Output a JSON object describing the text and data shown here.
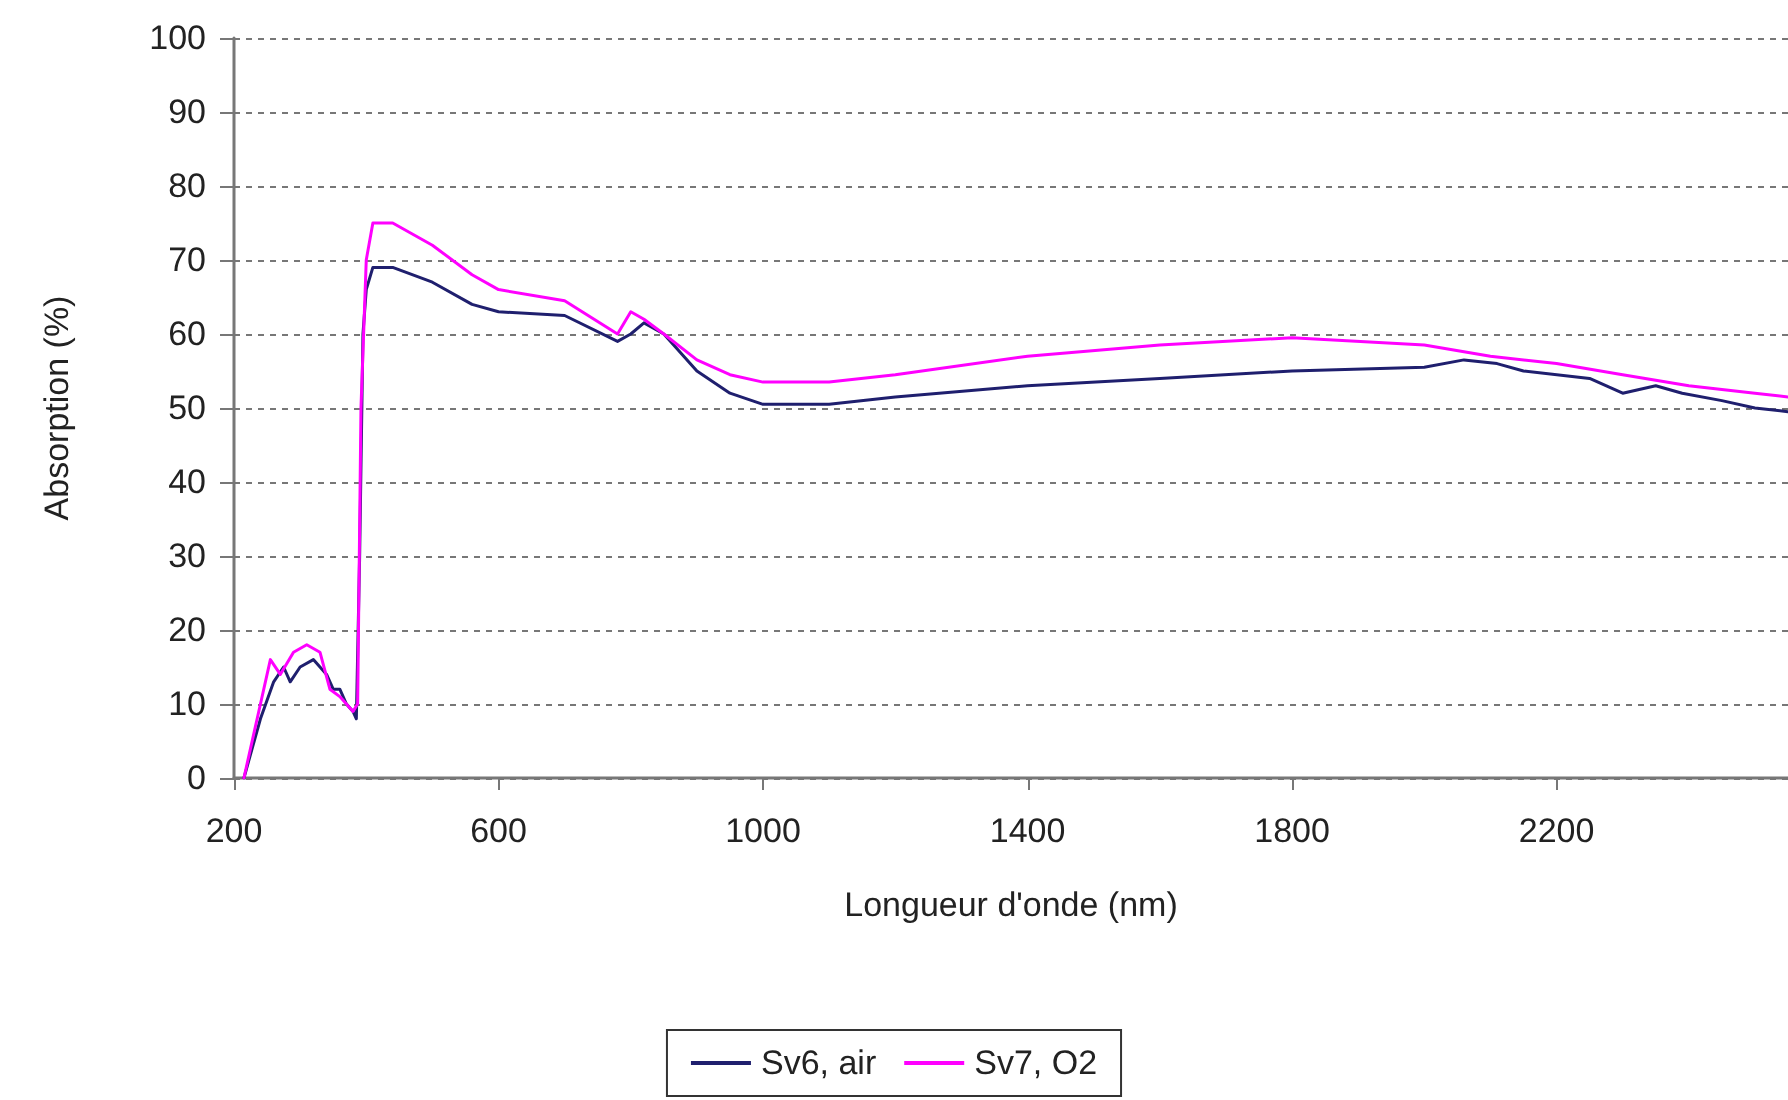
{
  "chart_data": {
    "type": "line",
    "xlabel": "Longueur d'onde (nm)",
    "ylabel": "Absorption (%)",
    "xlim": [
      200,
      2550
    ],
    "xticks": [
      200,
      600,
      1000,
      1400,
      1800,
      2200
    ],
    "ylim": [
      0,
      100
    ],
    "yticks": [
      0,
      10,
      20,
      30,
      40,
      50,
      60,
      70,
      80,
      90,
      100
    ],
    "grid": "y",
    "legend": "bottom",
    "marker": "none",
    "line_style": "solid",
    "series": [
      {
        "name": "Sv6, air",
        "color": "#1f1f6e",
        "x": [
          215,
          240,
          260,
          275,
          285,
          300,
          320,
          340,
          350,
          360,
          370,
          380,
          385,
          390,
          395,
          400,
          410,
          440,
          500,
          560,
          600,
          700,
          780,
          800,
          820,
          850,
          900,
          950,
          1000,
          1100,
          1200,
          1400,
          1600,
          1800,
          2000,
          2060,
          2110,
          2150,
          2250,
          2300,
          2350,
          2390,
          2450,
          2500,
          2550
        ],
        "values": [
          0,
          8,
          13,
          15,
          13,
          15,
          16,
          14,
          12,
          12,
          10,
          9,
          8,
          30,
          60,
          66,
          69,
          69,
          67,
          64,
          63,
          62.5,
          59,
          60,
          61.5,
          60,
          55,
          52,
          50.5,
          50.5,
          51.5,
          53,
          54,
          55,
          55.5,
          56.5,
          56,
          55,
          54,
          52,
          53,
          52,
          51,
          50,
          49.5
        ]
      },
      {
        "name": "Sv7, O2",
        "color": "#ff00ff",
        "x": [
          215,
          240,
          255,
          270,
          290,
          310,
          330,
          345,
          360,
          380,
          387,
          392,
          400,
          410,
          440,
          500,
          560,
          600,
          700,
          780,
          800,
          820,
          850,
          900,
          950,
          1000,
          1100,
          1200,
          1400,
          1600,
          1800,
          2000,
          2100,
          2200,
          2300,
          2400,
          2500,
          2550
        ],
        "values": [
          0,
          10,
          16,
          14,
          17,
          18,
          17,
          12,
          11,
          9,
          10,
          50,
          70,
          75,
          75,
          72,
          68,
          66,
          64.5,
          60,
          63,
          62,
          60,
          56.5,
          54.5,
          53.5,
          53.5,
          54.5,
          57,
          58.5,
          59.5,
          58.5,
          57,
          56,
          54.5,
          53,
          52,
          51.5
        ]
      }
    ]
  }
}
